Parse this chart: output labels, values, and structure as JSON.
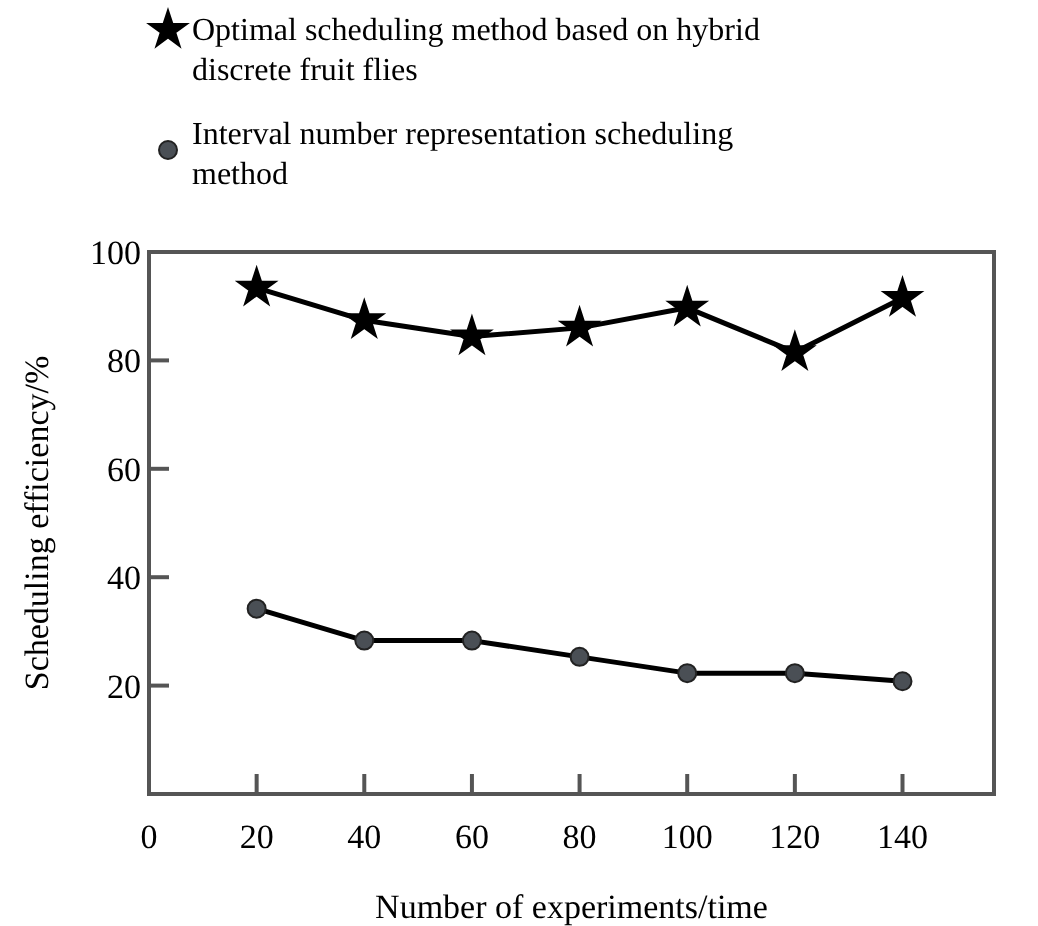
{
  "chart_data": {
    "type": "line",
    "xlabel": "Number of experiments/time",
    "ylabel": "Scheduling efficiency/%",
    "x": [
      20,
      40,
      60,
      80,
      100,
      120,
      140
    ],
    "xlim": [
      0,
      157
    ],
    "xticks": [
      0,
      20,
      40,
      60,
      80,
      100,
      120,
      140
    ],
    "ylim": [
      0,
      100
    ],
    "yticks": [
      20,
      40,
      60,
      80,
      100
    ],
    "legend": "top",
    "grid": false,
    "series": [
      {
        "name": "Optimal scheduling method based on hybrid discrete fruit flies",
        "color": "#000000",
        "marker": "star",
        "values": [
          93.4,
          87.4,
          84.4,
          86,
          89.7,
          81.5,
          91.5
        ]
      },
      {
        "name": "Interval number representation scheduling method",
        "color": "#000000",
        "marker": "circle",
        "values": [
          34.2,
          28.3,
          28.3,
          25.3,
          22.3,
          22.3,
          20.8
        ]
      }
    ]
  }
}
